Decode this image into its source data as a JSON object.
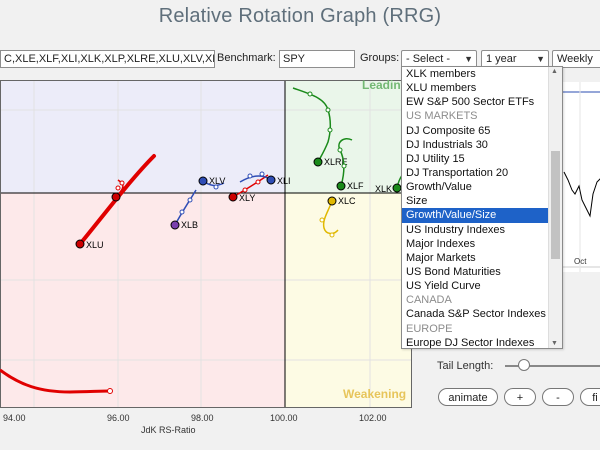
{
  "title": "Relative Rotation Graph (RRG)",
  "toolbar": {
    "symbols_value": "C,XLE,XLF,XLI,XLK,XLP,XLRE,XLU,XLV,XL",
    "benchmark_label": "Benchmark:",
    "benchmark_value": "SPY",
    "groups_label": "Groups:",
    "groups_value": "- Select -",
    "period_value": "1 year",
    "frequency_value": "Weekly"
  },
  "quadrants": {
    "leading": "Leading",
    "weakening": "Weakening"
  },
  "quadrant_colors": {
    "leading": "#eaf6ea",
    "weakening": "#fdfbe4",
    "lagging": "#fde9ea",
    "improving": "#ececf9"
  },
  "axis": {
    "x_ticks": [
      "94.00",
      "96.00",
      "98.00",
      "100.00",
      "102.00"
    ],
    "x_label": "JdK RS-Ratio"
  },
  "symbols": [
    {
      "name": "XLU",
      "color": "#e00000"
    },
    {
      "name": "XLY",
      "color": "#e00000"
    },
    {
      "name": "XLV",
      "color": "#2f4db5"
    },
    {
      "name": "XLB",
      "color": "#2f4db5"
    },
    {
      "name": "XLI",
      "color": "#2f4db5"
    },
    {
      "name": "XLRE",
      "color": "#1a8a1a"
    },
    {
      "name": "XLF",
      "color": "#1a8a1a"
    },
    {
      "name": "XLC",
      "color": "#e0b800"
    },
    {
      "name": "XLK",
      "color": "#1a8a1a"
    }
  ],
  "dropdown": {
    "items": [
      {
        "label": "XLK members",
        "type": "item"
      },
      {
        "label": "XLU members",
        "type": "item"
      },
      {
        "label": "EW S&P 500 Sector ETFs",
        "type": "item"
      },
      {
        "label": "US MARKETS",
        "type": "group"
      },
      {
        "label": "DJ Composite 65",
        "type": "item"
      },
      {
        "label": "DJ Industrials 30",
        "type": "item"
      },
      {
        "label": "DJ Utility 15",
        "type": "item"
      },
      {
        "label": "DJ Transportation 20",
        "type": "item"
      },
      {
        "label": "Growth/Value",
        "type": "item"
      },
      {
        "label": "Size",
        "type": "item"
      },
      {
        "label": "Growth/Value/Size",
        "type": "selected"
      },
      {
        "label": "US Industry Indexes",
        "type": "item"
      },
      {
        "label": "Major Indexes",
        "type": "item"
      },
      {
        "label": "Major Markets",
        "type": "item"
      },
      {
        "label": "US Bond Maturities",
        "type": "item"
      },
      {
        "label": "US Yield Curve",
        "type": "item"
      },
      {
        "label": "CANADA",
        "type": "group"
      },
      {
        "label": "Canada S&P Sector Indexes",
        "type": "item"
      },
      {
        "label": "EUROPE",
        "type": "group"
      },
      {
        "label": "Europe DJ Sector Indexes",
        "type": "item"
      }
    ]
  },
  "side_chart": {
    "month_label": "Oct"
  },
  "controls": {
    "tail_length_label": "Tail Length:",
    "animate_label": "animate",
    "plus_label": "+",
    "minus_label": "-",
    "fit_label": "fi"
  }
}
